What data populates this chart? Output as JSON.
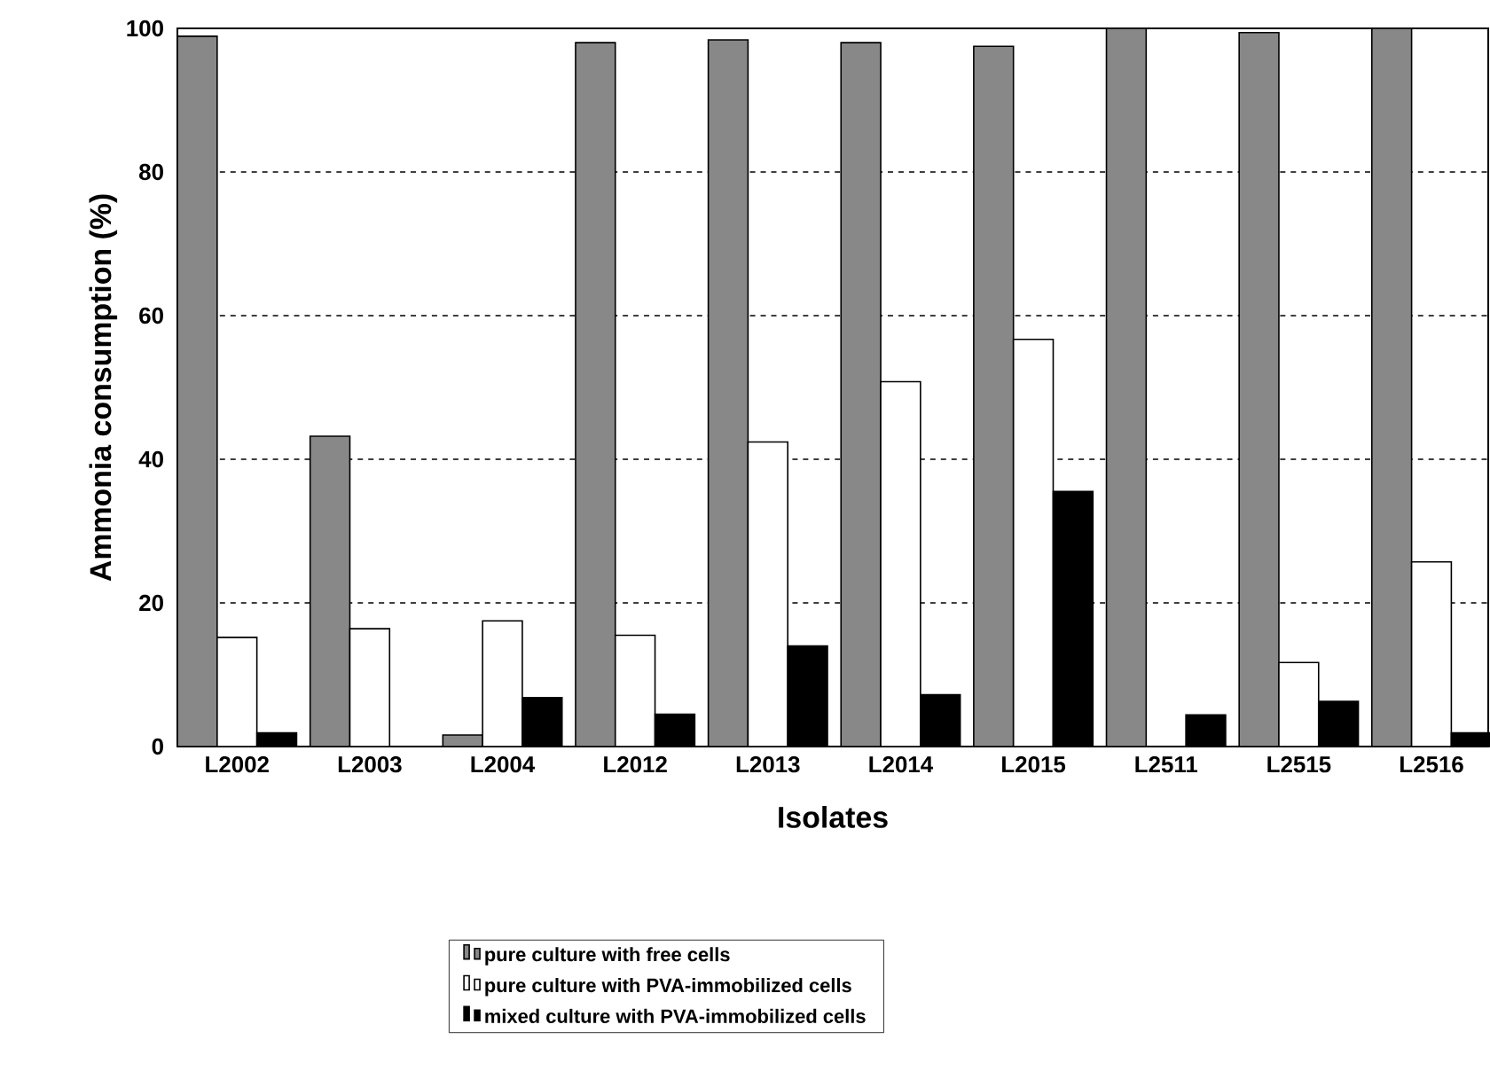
{
  "chart_data": {
    "type": "bar",
    "xlabel": "Isolates",
    "ylabel": "Ammonia consumption (%)",
    "categories": [
      "L2002",
      "L2003",
      "L2004",
      "L2012",
      "L2013",
      "L2014",
      "L2015",
      "L2511",
      "L2515",
      "L2516"
    ],
    "series": [
      {
        "name": "pure culture with free cells",
        "color": "#888888",
        "values": [
          98.9,
          43.2,
          1.6,
          98.0,
          98.4,
          98.0,
          97.5,
          100,
          99.4,
          100
        ]
      },
      {
        "name": "pure culture with PVA-immobilized cells",
        "color": "#ffffff",
        "values": [
          15.2,
          16.4,
          17.5,
          15.5,
          42.4,
          50.8,
          56.7,
          null,
          11.7,
          25.7
        ]
      },
      {
        "name": "mixed culture with PVA-immobilized cells",
        "color": "#000000",
        "values": [
          1.9,
          null,
          6.8,
          4.5,
          14.0,
          7.2,
          35.5,
          4.4,
          6.3,
          1.9
        ]
      }
    ],
    "ylim": [
      0,
      100
    ],
    "yticks": [
      0,
      20,
      40,
      60,
      80,
      100
    ],
    "grid": "y",
    "legend": "bottom"
  }
}
